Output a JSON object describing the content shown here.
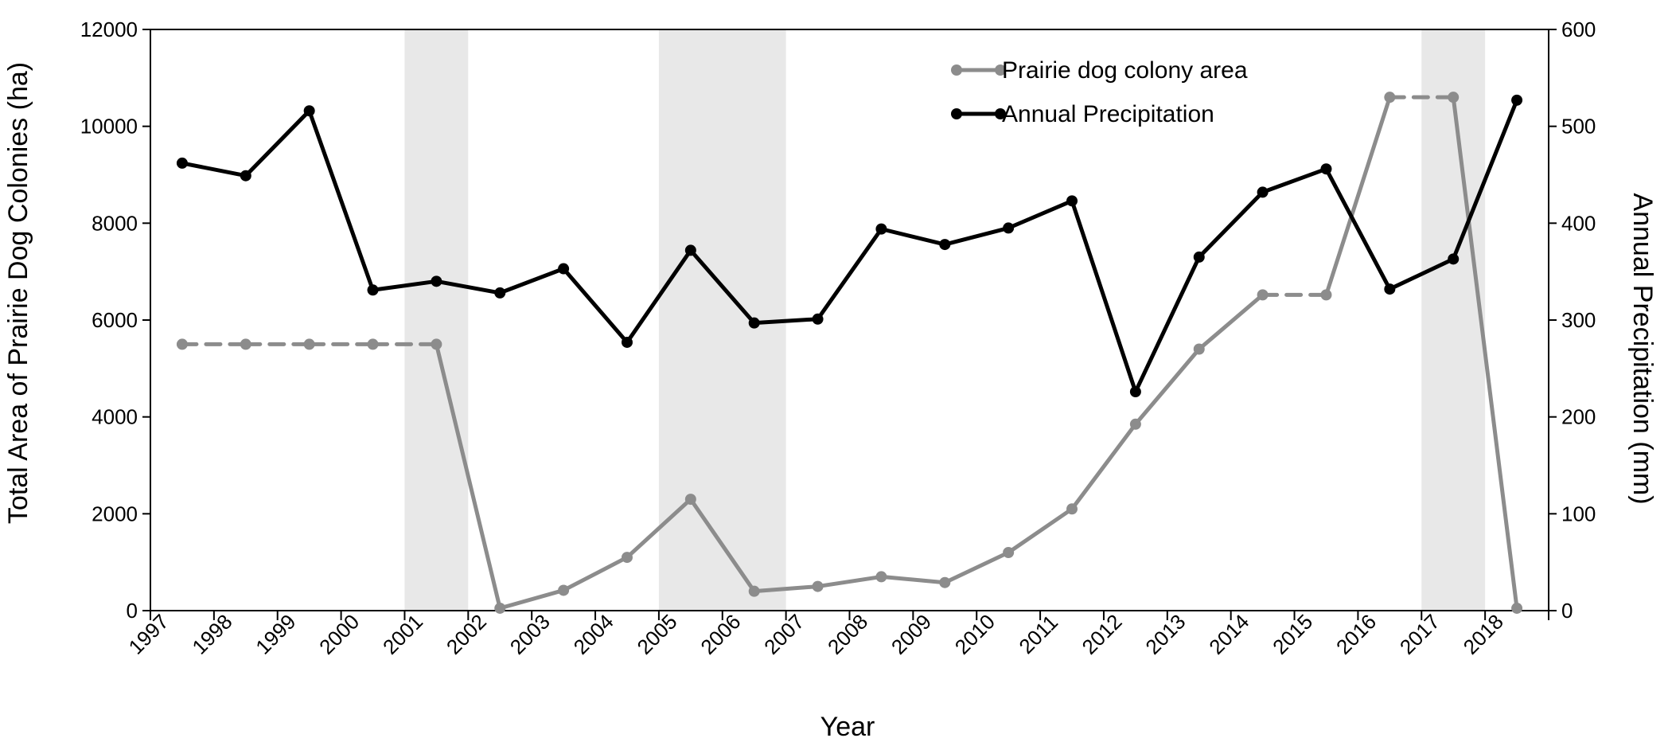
{
  "chart_data": {
    "type": "line",
    "xlabel": "Year",
    "ylabel_left": "Total Area of Prairie Dog Colonies (ha)",
    "ylabel_right": "Annual Precipitation (mm)",
    "ylim_left": [
      0,
      12000
    ],
    "ylim_right": [
      0,
      600
    ],
    "yticks_left": [
      "0",
      "2000",
      "4000",
      "6000",
      "8000",
      "10000",
      "12000"
    ],
    "yticks_right": [
      "0",
      "100",
      "200",
      "300",
      "400",
      "500",
      "600"
    ],
    "categories": [
      "1997",
      "1998",
      "1999",
      "2000",
      "2001",
      "2002",
      "2003",
      "2004",
      "2005",
      "2006",
      "2007",
      "2008",
      "2009",
      "2010",
      "2011",
      "2012",
      "2013",
      "2014",
      "2015",
      "2016",
      "2017",
      "2018"
    ],
    "shaded_periods": [
      [
        2001,
        2002
      ],
      [
        2005,
        2007
      ],
      [
        2017,
        2018
      ]
    ],
    "grid": false,
    "legend_position": "top-right",
    "series": [
      {
        "name": "Prairie dog colony area",
        "axis": "left",
        "color": "#8c8c8c",
        "values": [
          5500,
          5500,
          5500,
          5500,
          5500,
          50,
          420,
          1100,
          2300,
          400,
          500,
          700,
          580,
          1200,
          2100,
          3850,
          5400,
          6520,
          6520,
          10600,
          10600,
          50
        ],
        "interpolated_segments": [
          [
            0,
            4
          ],
          [
            17,
            18
          ],
          [
            19,
            20
          ]
        ]
      },
      {
        "name": "Annual Precipitation",
        "axis": "right",
        "color": "#000000",
        "values": [
          462,
          449,
          516,
          331,
          340,
          328,
          353,
          277,
          372,
          297,
          301,
          394,
          378,
          395,
          423,
          226,
          365,
          432,
          456,
          332,
          363,
          527
        ]
      }
    ]
  }
}
